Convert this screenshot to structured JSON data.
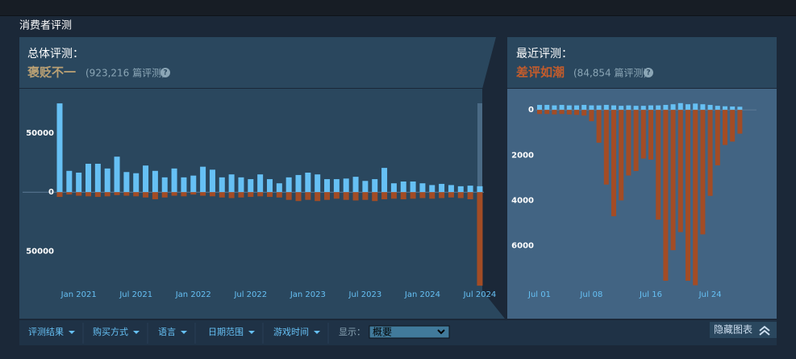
{
  "section_title": "消费者评测",
  "overall": {
    "label": "总体评测：",
    "rating": "褒贬不一",
    "count": "(923,216 篇评测)"
  },
  "recent": {
    "label": "最近评测：",
    "rating": "差评如潮",
    "count": "(84,854 篇评测)"
  },
  "help_icon": "?",
  "filters": [
    "评测结果",
    "购买方式",
    "语言",
    "日期范围",
    "游戏时间"
  ],
  "display_label": "显示：",
  "display_value": "概要",
  "hide_chart": "隐藏图表",
  "chart_data": [
    {
      "type": "bar",
      "categories": [
        null,
        null,
        "Jan 2021",
        null,
        null,
        null,
        null,
        null,
        "Jul 2021",
        null,
        null,
        null,
        null,
        null,
        "Jan 2022",
        null,
        null,
        null,
        null,
        null,
        "Jul 2022",
        null,
        null,
        null,
        null,
        null,
        "Jan 2023",
        null,
        null,
        null,
        null,
        null,
        "Jul 2023",
        null,
        null,
        null,
        null,
        null,
        "Jan 2024",
        null,
        null,
        null,
        null,
        null,
        "Jul 2024"
      ],
      "series": [
        {
          "color": "#66c0f4",
          "values": [
            75000,
            18000,
            16500,
            24000,
            24000,
            20000,
            30000,
            17000,
            16000,
            22500,
            18000,
            12500,
            20000,
            12500,
            14000,
            21500,
            19000,
            12500,
            15000,
            12500,
            11000,
            15000,
            11000,
            7500,
            12500,
            14500,
            16500,
            15000,
            11000,
            11000,
            11500,
            13000,
            9500,
            11000,
            20500,
            7500,
            9000,
            9000,
            7500,
            6000,
            7000,
            6000,
            5000,
            5500,
            5000
          ]
        },
        {
          "color": "#a34c25",
          "values": [
            -4000,
            -2000,
            -3000,
            -3500,
            -4000,
            -3500,
            -2500,
            -3000,
            -3500,
            -4500,
            -6000,
            -4500,
            -3000,
            -3500,
            -2000,
            -3000,
            -3500,
            -4500,
            -5000,
            -4500,
            -4000,
            -3500,
            -4000,
            -4500,
            -6500,
            -7500,
            -6500,
            -7500,
            -6500,
            -5500,
            -6500,
            -7000,
            -6500,
            -7500,
            -6000,
            -5500,
            -6000,
            -5500,
            -5000,
            -5500,
            -5000,
            -4500,
            -5000,
            -6000,
            -79000
          ]
        }
      ],
      "ylim": [
        -83000,
        86000
      ],
      "yticks": [
        50000,
        0,
        {
          "value": -50000,
          "label": "50000"
        }
      ]
    },
    {
      "type": "bar",
      "categories": [
        "Jul 01",
        null,
        null,
        null,
        null,
        null,
        null,
        "Jul 08",
        null,
        null,
        null,
        null,
        null,
        null,
        null,
        "Jul 16",
        null,
        null,
        null,
        null,
        null,
        null,
        null,
        "Jul 24",
        null,
        null,
        null,
        null
      ],
      "series": [
        {
          "color": "#66c0f4",
          "values": [
            220,
            220,
            200,
            220,
            200,
            200,
            220,
            200,
            200,
            220,
            200,
            180,
            200,
            180,
            180,
            200,
            200,
            220,
            250,
            300,
            250,
            280,
            250,
            220,
            180,
            160,
            150,
            140
          ]
        },
        {
          "color": "#a34c25",
          "values": [
            -180,
            -180,
            -200,
            -180,
            -200,
            -220,
            -250,
            -500,
            -1450,
            -3300,
            -4700,
            -4000,
            -2900,
            -2700,
            -2150,
            -2200,
            -4850,
            -7550,
            -6200,
            -5400,
            -7550,
            -7750,
            -5500,
            -3800,
            -2450,
            -1550,
            -1400,
            -1050
          ]
        }
      ],
      "ylim": [
        -7800,
        400
      ],
      "yticks": [
        0,
        {
          "value": -2000,
          "label": "2000"
        },
        {
          "value": -4000,
          "label": "4000"
        },
        {
          "value": -6000,
          "label": "6000"
        }
      ]
    }
  ]
}
